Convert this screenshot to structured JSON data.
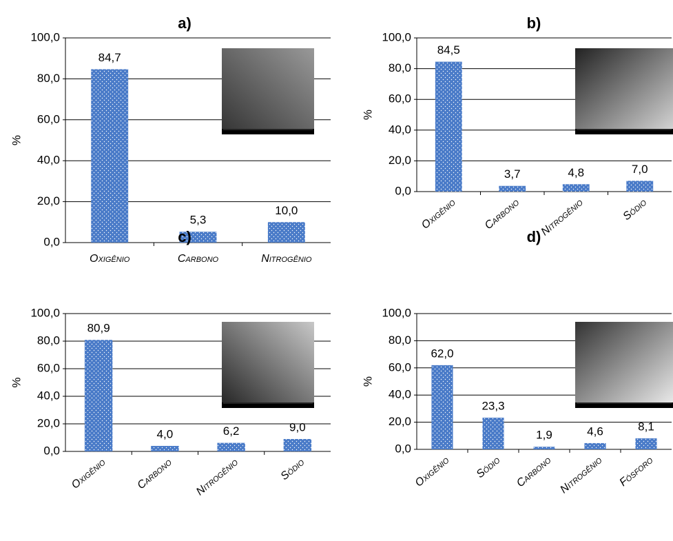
{
  "chart_data": [
    {
      "type": "bar",
      "title": "a)",
      "y_label": "%",
      "color": "#4a7bc8",
      "grid": true,
      "categories": [
        "Oxigênio",
        "Carbono",
        "Nitrogênio"
      ],
      "values": [
        84.7,
        5.3,
        10.0
      ],
      "value_labels": [
        "84,7",
        "5,3",
        "10,0"
      ],
      "ylim": [
        0,
        100
      ],
      "yticks": [
        {
          "value": 0,
          "label": "0,0"
        },
        {
          "value": 20,
          "label": "20,0"
        },
        {
          "value": 40,
          "label": "40,0"
        },
        {
          "value": 60,
          "label": "60,0"
        },
        {
          "value": 80,
          "label": "80,0"
        },
        {
          "value": 100,
          "label": "100,0"
        }
      ]
    },
    {
      "type": "bar",
      "title": "b)",
      "y_label": "%",
      "color": "#4a7bc8",
      "grid": true,
      "categories": [
        "Oxigênio",
        "Carbono",
        "Nitrogênio",
        "Sódio"
      ],
      "values": [
        84.5,
        3.7,
        4.8,
        7.0
      ],
      "value_labels": [
        "84,5",
        "3,7",
        "4,8",
        "7,0"
      ],
      "ylim": [
        0,
        100
      ],
      "yticks": [
        {
          "value": 0,
          "label": "0,0"
        },
        {
          "value": 20,
          "label": "20,0"
        },
        {
          "value": 40,
          "label": "40,0"
        },
        {
          "value": 60,
          "label": "60,0"
        },
        {
          "value": 80,
          "label": "80,0"
        },
        {
          "value": 100,
          "label": "100,0"
        }
      ]
    },
    {
      "type": "bar",
      "title": "c)",
      "y_label": "%",
      "color": "#4a7bc8",
      "grid": true,
      "categories": [
        "Oxigênio",
        "Carbono",
        "Nitrogênio",
        "Sódio"
      ],
      "values": [
        80.9,
        4.0,
        6.2,
        9.0
      ],
      "value_labels": [
        "80,9",
        "4,0",
        "6,2",
        "9,0"
      ],
      "ylim": [
        0,
        100
      ],
      "yticks": [
        {
          "value": 0,
          "label": "0,0"
        },
        {
          "value": 20,
          "label": "20,0"
        },
        {
          "value": 40,
          "label": "40,0"
        },
        {
          "value": 60,
          "label": "60,0"
        },
        {
          "value": 80,
          "label": "80,0"
        },
        {
          "value": 100,
          "label": "100,0"
        }
      ]
    },
    {
      "type": "bar",
      "title": "d)",
      "y_label": "%",
      "color": "#4a7bc8",
      "grid": true,
      "categories": [
        "Oxigênio",
        "Sódio",
        "Carbono",
        "Nitrogênio",
        "Fósforo"
      ],
      "values": [
        62.0,
        23.3,
        1.9,
        4.6,
        8.1
      ],
      "value_labels": [
        "62,0",
        "23,3",
        "1,9",
        "4,6",
        "8,1"
      ],
      "ylim": [
        0,
        100
      ],
      "yticks": [
        {
          "value": 0,
          "label": "0,0"
        },
        {
          "value": 20,
          "label": "20,0"
        },
        {
          "value": 40,
          "label": "40,0"
        },
        {
          "value": 60,
          "label": "60,0"
        },
        {
          "value": 80,
          "label": "80,0"
        },
        {
          "value": 100,
          "label": "100,0"
        }
      ]
    }
  ]
}
